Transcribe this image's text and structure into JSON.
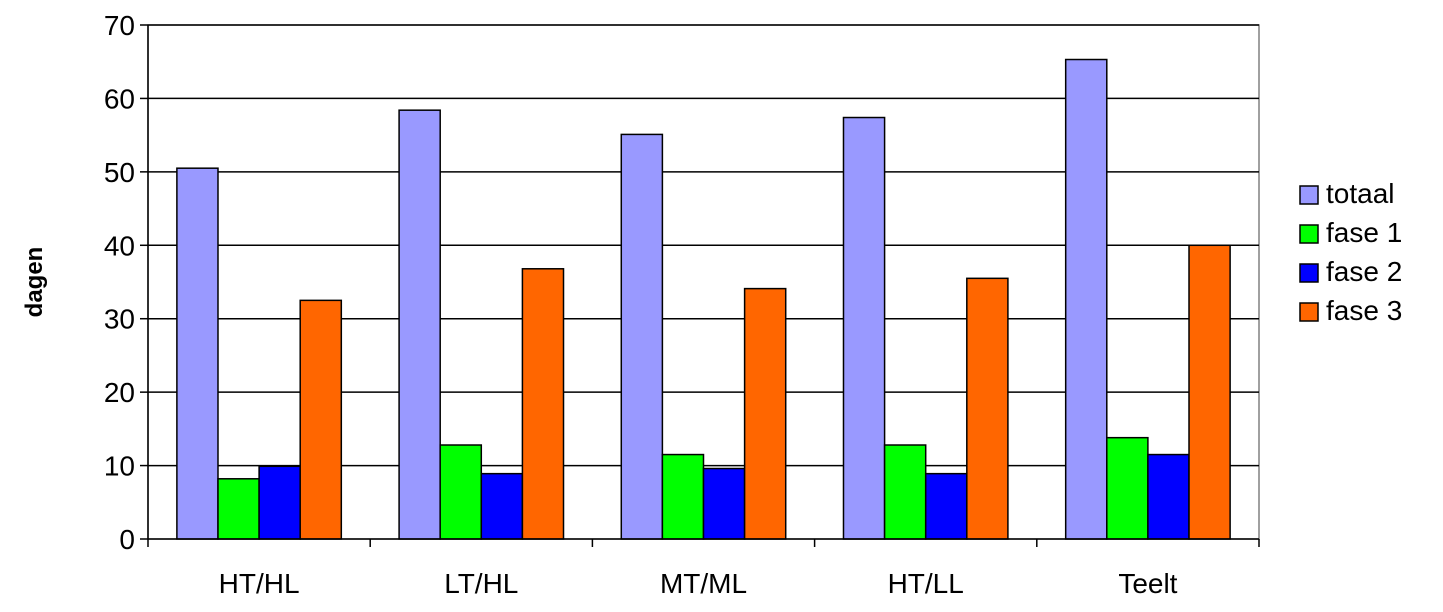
{
  "chart_data": {
    "type": "bar",
    "title": "",
    "xlabel": "",
    "ylabel": "dagen",
    "ylim": [
      0,
      70
    ],
    "yticks": [
      0,
      10,
      20,
      30,
      40,
      50,
      60,
      70
    ],
    "grid": "horizontal",
    "legend_position": "right",
    "categories": [
      "HT/HL",
      "LT/HL",
      "MT/ML",
      "HT/LL",
      "Teelt"
    ],
    "series": [
      {
        "name": "totaal",
        "color": "#9999ff",
        "values": [
          50.5,
          58.4,
          55.1,
          57.4,
          65.3
        ]
      },
      {
        "name": "fase 1",
        "color": "#00ff00",
        "values": [
          8.2,
          12.8,
          11.5,
          12.8,
          13.8
        ]
      },
      {
        "name": "fase 2",
        "color": "#0000ff",
        "values": [
          9.9,
          8.9,
          9.6,
          8.9,
          11.5
        ]
      },
      {
        "name": "fase 3",
        "color": "#ff6600",
        "values": [
          32.5,
          36.8,
          34.1,
          35.5,
          40.0
        ]
      }
    ]
  }
}
